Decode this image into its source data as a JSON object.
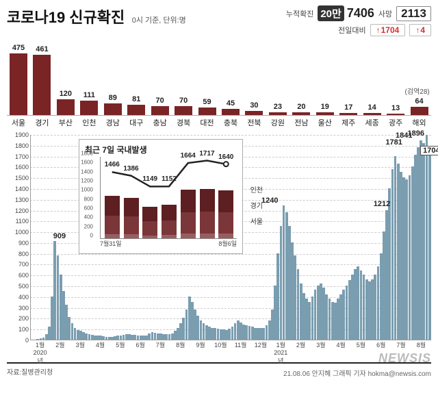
{
  "header": {
    "title": "코로나19 신규확진",
    "subtitle": "0시 기준, 단위:명",
    "cum_label": "누적확진",
    "cum_prefix": "20만",
    "cum_tail": "7406",
    "deaths_label": "사망",
    "deaths": "2113",
    "delta_label": "전일대비",
    "delta_cases": "1704",
    "delta_deaths": "4"
  },
  "regions": {
    "max_scale": 500,
    "bar_color": "#7a2426",
    "items": [
      {
        "name": "서울",
        "value": 475
      },
      {
        "name": "경기",
        "value": 461
      },
      {
        "name": "부산",
        "value": 120
      },
      {
        "name": "인천",
        "value": 111
      },
      {
        "name": "경남",
        "value": 89
      },
      {
        "name": "대구",
        "value": 81
      },
      {
        "name": "충남",
        "value": 70
      },
      {
        "name": "경북",
        "value": 70
      },
      {
        "name": "대전",
        "value": 59
      },
      {
        "name": "충북",
        "value": 45
      },
      {
        "name": "전북",
        "value": 30
      },
      {
        "name": "강원",
        "value": 23
      },
      {
        "name": "전남",
        "value": 20
      },
      {
        "name": "울산",
        "value": 19
      },
      {
        "name": "제주",
        "value": 17
      },
      {
        "name": "세종",
        "value": 14
      },
      {
        "name": "광주",
        "value": 13
      },
      {
        "name": "해외",
        "value": 64,
        "note": "(검역28)"
      }
    ]
  },
  "timeseries": {
    "y_ticks": [
      0,
      100,
      200,
      300,
      400,
      500,
      600,
      700,
      800,
      900,
      1000,
      1100,
      1200,
      1300,
      1400,
      1500,
      1600,
      1700,
      1800,
      1900
    ],
    "y_max": 1900,
    "bar_color": "#7a9db0",
    "x_months": [
      {
        "label": "1월",
        "year": "2020년"
      },
      {
        "label": "2월"
      },
      {
        "label": "3월"
      },
      {
        "label": "4월"
      },
      {
        "label": "5월"
      },
      {
        "label": "6월"
      },
      {
        "label": "7월"
      },
      {
        "label": "8월"
      },
      {
        "label": "9월"
      },
      {
        "label": "10월"
      },
      {
        "label": "11월"
      },
      {
        "label": "12월"
      },
      {
        "label": "1월",
        "year": "2021년"
      },
      {
        "label": "2월"
      },
      {
        "label": "3월"
      },
      {
        "label": "4월"
      },
      {
        "label": "5월"
      },
      {
        "label": "6월"
      },
      {
        "label": "7월"
      },
      {
        "label": "8월"
      }
    ],
    "callouts": [
      {
        "value": "909",
        "x_pct": 8,
        "y_val": 960
      },
      {
        "value": "1240",
        "x_pct": 60,
        "y_val": 1290
      },
      {
        "value": "1212",
        "x_pct": 88,
        "y_val": 1260,
        "right": true
      },
      {
        "value": "1781",
        "x_pct": 91,
        "y_val": 1830
      },
      {
        "value": "1841",
        "x_pct": 93.5,
        "y_val": 1895
      },
      {
        "value": "1896",
        "x_pct": 96.5,
        "y_val": 1950
      },
      {
        "value": "1704",
        "x_pct": 99,
        "y_val": 1760,
        "boxed": true
      }
    ],
    "bars_approx": [
      0,
      0,
      5,
      10,
      20,
      50,
      120,
      400,
      909,
      780,
      600,
      450,
      320,
      210,
      150,
      110,
      90,
      80,
      70,
      60,
      50,
      45,
      40,
      38,
      35,
      30,
      28,
      25,
      27,
      30,
      35,
      40,
      45,
      50,
      48,
      45,
      42,
      40,
      38,
      35,
      40,
      55,
      70,
      65,
      60,
      55,
      50,
      48,
      52,
      60,
      80,
      110,
      150,
      200,
      280,
      400,
      350,
      280,
      220,
      180,
      150,
      130,
      120,
      110,
      105,
      100,
      95,
      92,
      90,
      100,
      120,
      150,
      180,
      160,
      140,
      130,
      125,
      120,
      110,
      108,
      105,
      110,
      130,
      180,
      280,
      500,
      800,
      1050,
      1240,
      1180,
      1050,
      900,
      780,
      650,
      520,
      430,
      380,
      350,
      400,
      460,
      500,
      520,
      480,
      420,
      380,
      350,
      340,
      380,
      420,
      460,
      500,
      550,
      600,
      650,
      680,
      640,
      600,
      560,
      540,
      560,
      600,
      680,
      800,
      1000,
      1200,
      1400,
      1580,
      1700,
      1630,
      1550,
      1500,
      1480,
      1520,
      1600,
      1710,
      1781,
      1841,
      1820,
      1896,
      1704
    ]
  },
  "inset": {
    "title": "최근 7일 국내발생",
    "y_ticks": [
      0,
      200,
      400,
      600,
      800,
      1000,
      1200,
      1400,
      1600,
      1800
    ],
    "y_max": 1800,
    "x_start": "7월31일",
    "x_end": "8월6일",
    "legend": [
      "인천",
      "경기",
      "서울"
    ],
    "seg_colors": [
      "#9a5d5f",
      "#7a3638",
      "#5d1f21"
    ],
    "line_color": "#222",
    "line_values": [
      1466,
      1386,
      1149,
      1152,
      1664,
      1717,
      1640
    ],
    "stacks": [
      {
        "incheon": 90,
        "gyeonggi": 410,
        "seoul": 430
      },
      {
        "incheon": 85,
        "gyeonggi": 395,
        "seoul": 410
      },
      {
        "incheon": 65,
        "gyeonggi": 310,
        "seoul": 320
      },
      {
        "incheon": 70,
        "gyeonggi": 320,
        "seoul": 340
      },
      {
        "incheon": 105,
        "gyeonggi": 470,
        "seoul": 490
      },
      {
        "incheon": 110,
        "gyeonggi": 480,
        "seoul": 495
      },
      {
        "incheon": 111,
        "gyeonggi": 461,
        "seoul": 475
      }
    ]
  },
  "footer": {
    "source": "자료:질병관리청",
    "credit": "21.08.06  안지혜 그래픽 기자  hokma@newsis.com",
    "logo": "NEWSIS"
  }
}
